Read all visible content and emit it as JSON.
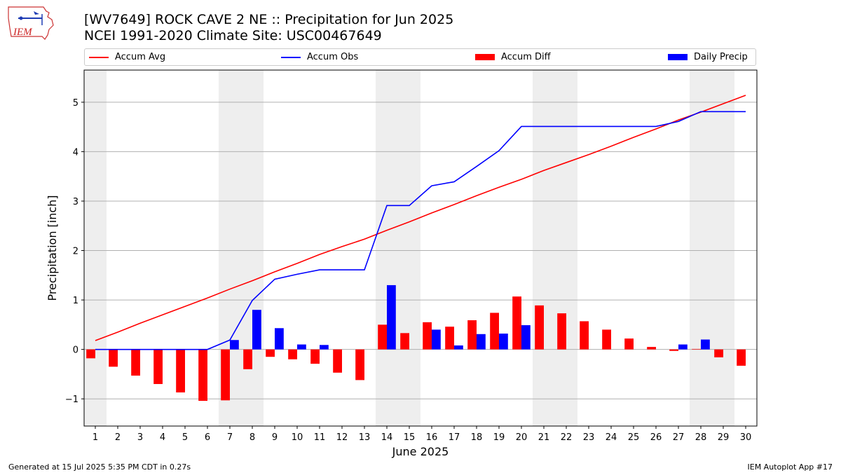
{
  "logo": {
    "text": "IEM"
  },
  "title": {
    "line1": "[WV7649] ROCK CAVE 2 NE :: Precipitation for Jun 2025",
    "line2": "NCEI 1991-2020 Climate Site: USC00467649"
  },
  "legend": {
    "items": [
      {
        "label": "Accum Avg",
        "kind": "line",
        "color": "#ff0000"
      },
      {
        "label": "Accum Obs",
        "kind": "line",
        "color": "#0000ff"
      },
      {
        "label": "Accum Diff",
        "kind": "patch",
        "color": "#ff0000"
      },
      {
        "label": "Daily Precip",
        "kind": "patch",
        "color": "#0000ff"
      }
    ]
  },
  "footer": {
    "left": "Generated at 15 Jul 2025 5:35 PM CDT in 0.27s",
    "right": "IEM Autoplot App #17"
  },
  "chart_data": {
    "type": "bar",
    "xlabel": "June 2025",
    "ylabel": "Precipitation [inch]",
    "xlim": [
      0.5,
      30.5
    ],
    "ylim": [
      -1.55,
      5.65
    ],
    "yticks": [
      -1,
      0,
      1,
      2,
      3,
      4,
      5
    ],
    "ytick_labels": [
      "−1",
      "0",
      "1",
      "2",
      "3",
      "4",
      "5"
    ],
    "grid": "horizontal",
    "weekend_shading_days": [
      1,
      7,
      8,
      14,
      15,
      21,
      22,
      28,
      29
    ],
    "colors": {
      "avg": "#ff0000",
      "obs": "#0000ff",
      "diff": "#ff0000",
      "daily": "#0000ff",
      "shade": "#eeeeee"
    },
    "days": [
      1,
      2,
      3,
      4,
      5,
      6,
      7,
      8,
      9,
      10,
      11,
      12,
      13,
      14,
      15,
      16,
      17,
      18,
      19,
      20,
      21,
      22,
      23,
      24,
      25,
      26,
      27,
      28,
      29,
      30
    ],
    "series": [
      {
        "name": "Accum Avg",
        "kind": "line",
        "values": [
          0.18,
          0.35,
          0.53,
          0.7,
          0.87,
          1.04,
          1.22,
          1.39,
          1.57,
          1.74,
          1.92,
          2.08,
          2.23,
          2.41,
          2.58,
          2.76,
          2.93,
          3.11,
          3.28,
          3.44,
          3.62,
          3.78,
          3.94,
          4.11,
          4.29,
          4.46,
          4.64,
          4.8,
          4.97,
          5.14
        ]
      },
      {
        "name": "Accum Obs",
        "kind": "line",
        "values": [
          0,
          0,
          0,
          0,
          0,
          0,
          0.19,
          0.99,
          1.42,
          1.52,
          1.61,
          1.61,
          1.61,
          2.91,
          2.91,
          3.31,
          3.39,
          3.7,
          4.02,
          4.51,
          4.51,
          4.51,
          4.51,
          4.51,
          4.51,
          4.51,
          4.61,
          4.81,
          4.81,
          4.81
        ]
      },
      {
        "name": "Accum Diff",
        "kind": "bar",
        "values": [
          -0.18,
          -0.35,
          -0.53,
          -0.7,
          -0.87,
          -1.04,
          -1.03,
          -0.4,
          -0.15,
          -0.2,
          -0.29,
          -0.47,
          -0.62,
          0.5,
          0.33,
          0.55,
          0.46,
          0.59,
          0.74,
          1.07,
          0.89,
          0.73,
          0.57,
          0.4,
          0.22,
          0.05,
          -0.03,
          0.01,
          -0.16,
          -0.33
        ]
      },
      {
        "name": "Daily Precip",
        "kind": "bar",
        "values": [
          0,
          0,
          0,
          0,
          0,
          0,
          0.19,
          0.8,
          0.43,
          0.1,
          0.09,
          0,
          0,
          1.3,
          0,
          0.4,
          0.08,
          0.31,
          0.32,
          0.49,
          0,
          0,
          0,
          0,
          0,
          0,
          0.1,
          0.2,
          0,
          0
        ]
      }
    ]
  }
}
